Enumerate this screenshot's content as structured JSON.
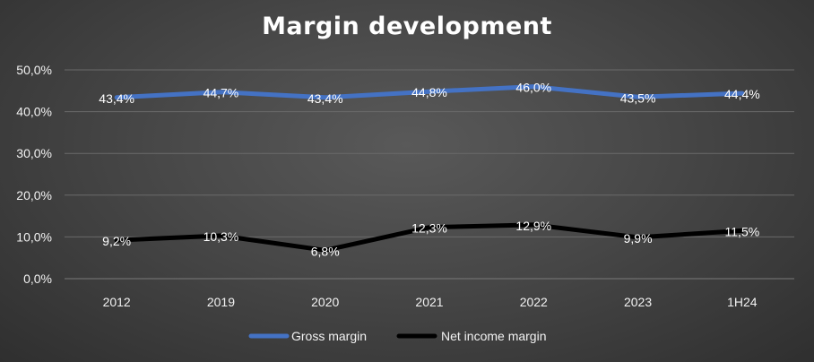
{
  "chart_data": {
    "type": "line",
    "title": "Margin development",
    "categories": [
      "2012",
      "2019",
      "2020",
      "2021",
      "2022",
      "2023",
      "1H24"
    ],
    "series": [
      {
        "name": "Gross margin",
        "color": "#4472c4",
        "values": [
          43.4,
          44.7,
          43.4,
          44.8,
          46.0,
          43.5,
          44.4
        ],
        "labels": [
          "43,4%",
          "44,7%",
          "43,4%",
          "44,8%",
          "46,0%",
          "43,5%",
          "44,4%"
        ]
      },
      {
        "name": "Net income margin",
        "color": "#000000",
        "values": [
          9.2,
          10.3,
          6.8,
          12.3,
          12.9,
          9.9,
          11.5
        ],
        "labels": [
          "9,2%",
          "10,3%",
          "6,8%",
          "12,3%",
          "12,9%",
          "9,9%",
          "11,5%"
        ]
      }
    ],
    "ylim": [
      0,
      50
    ],
    "yticks": [
      0,
      10,
      20,
      30,
      40,
      50
    ],
    "ytick_labels": [
      "0,0%",
      "10,0%",
      "20,0%",
      "30,0%",
      "40,0%",
      "50,0%"
    ],
    "xlabel": "",
    "ylabel": "",
    "grid": true,
    "legend_position": "bottom"
  }
}
